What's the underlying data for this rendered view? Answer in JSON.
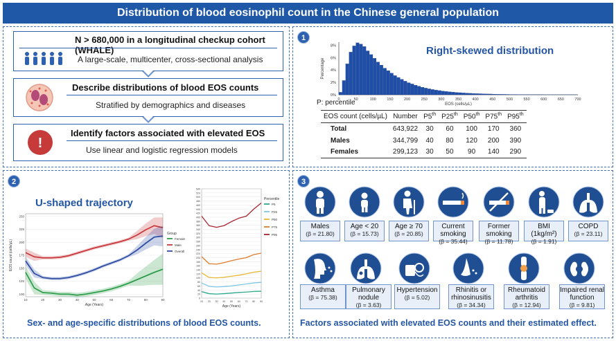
{
  "banner": "Distribution of blood eosinophil count in the Chinese general population",
  "flow": {
    "box1_title": "N > 680,000 in a longitudinal checkup cohort (WHALE)",
    "box1_sub": "A large-scale, multicenter, cross-sectional analysis",
    "box2_title": "Describe distributions of blood EOS counts",
    "box2_sub": "Stratified by demographics and diseases",
    "box3_title": "Identify factors associated with elevated EOS",
    "box3_sub": "Use linear and logistic regression models",
    "alert_symbol": "!"
  },
  "panel1": {
    "number": "1",
    "title": "Right-skewed distribution",
    "percentile_note": "P: percentile",
    "table": {
      "headers": [
        "EOS count (cells/µL)",
        "Number",
        "P5",
        "P25",
        "P50",
        "P75",
        "P95"
      ],
      "header_sup": "th",
      "rows": [
        {
          "label": "Total",
          "number": "643,922",
          "p5": "30",
          "p25": "60",
          "p50": "100",
          "p75": "170",
          "p95": "360"
        },
        {
          "label": "Males",
          "number": "344,799",
          "p5": "40",
          "p25": "80",
          "p50": "120",
          "p75": "200",
          "p95": "390"
        },
        {
          "label": "Females",
          "number": "299,123",
          "p5": "30",
          "p25": "50",
          "p50": "90",
          "p75": "140",
          "p95": "290"
        }
      ]
    }
  },
  "panel2": {
    "number": "2",
    "title": "U-shaped trajectory",
    "caption": "Sex- and age-specific distributions of blood EOS counts."
  },
  "panel3": {
    "number": "3",
    "caption": "Factors associated with elevated EOS counts and their estimated effect.",
    "row1": [
      {
        "label": "Males",
        "beta": "(β = 21.80)",
        "icon": "male-person-icon"
      },
      {
        "label": "Age < 20",
        "beta": "(β = 15.73)",
        "icon": "child-icon"
      },
      {
        "label": "Age ≥ 70",
        "beta": "(β = 20.85)",
        "icon": "elderly-icon"
      },
      {
        "label": "Current smoking",
        "beta": "(β = 35.44)",
        "icon": "cigarette-icon"
      },
      {
        "label": "Former smoking",
        "beta": "(β = 11.78)",
        "icon": "no-smoking-icon"
      },
      {
        "label": "BMI (1kg/m²)",
        "beta": "(β = 1.91)",
        "icon": "body-weight-icon"
      },
      {
        "label": "COPD",
        "beta": "(β = 23.11)",
        "icon": "lungs-icon"
      }
    ],
    "row2": [
      {
        "label": "Asthma",
        "beta": "(β = 75.38)",
        "icon": "coughing-head-icon"
      },
      {
        "label": "Pulmonary nodule",
        "beta": "(β = 3.63)",
        "icon": "lung-nodule-icon"
      },
      {
        "label": "Hypertension",
        "beta": "(β = 5.02)",
        "icon": "blood-pressure-icon"
      },
      {
        "label": "Rhinitis or rhinosinusitis",
        "beta": "(β = 34.34)",
        "icon": "nose-icon"
      },
      {
        "label": "Rheumatoid arthritis",
        "beta": "(β = 12.94)",
        "icon": "knee-joint-icon"
      },
      {
        "label": "Impaired renal function",
        "beta": "(β = 9.81)",
        "icon": "kidneys-icon"
      }
    ]
  },
  "chart_data": [
    {
      "type": "bar",
      "x_ticks": [
        0,
        50,
        100,
        150,
        200,
        250,
        300,
        350,
        400,
        450,
        500,
        550,
        600,
        650,
        700
      ],
      "xlabel": "EOS (cells/µL)",
      "ylabel": "Percentage",
      "y_ticks": [
        "0%",
        "2%",
        "4%",
        "6%",
        "8%"
      ],
      "ylim": [
        0,
        8.5
      ],
      "bin_width": 10,
      "bin_start": 0,
      "values": [
        0.4,
        2.3,
        5.0,
        6.9,
        7.9,
        8.4,
        8.2,
        7.8,
        7.1,
        6.5,
        5.9,
        5.3,
        4.8,
        4.3,
        3.9,
        3.5,
        3.1,
        2.8,
        2.5,
        2.2,
        1.95,
        1.75,
        1.55,
        1.38,
        1.22,
        1.08,
        0.96,
        0.85,
        0.76,
        0.68,
        0.6,
        0.54,
        0.48,
        0.43,
        0.38,
        0.34,
        0.3,
        0.27,
        0.24,
        0.21,
        0.19,
        0.17,
        0.15,
        0.13,
        0.12,
        0.1,
        0.09,
        0.08,
        0.07,
        0.06,
        0.05,
        0.05,
        0.04,
        0.04,
        0.03,
        0.03,
        0.02,
        0.02,
        0.02,
        0.02,
        0.01,
        0.01,
        0.01,
        0.01,
        0.01,
        0.01,
        0.01,
        0.01,
        0.01,
        0.01
      ]
    },
    {
      "type": "line",
      "xlabel": "Age (Years)",
      "ylabel": "EOS count (cells/µL)",
      "legend_title": "Group",
      "x_ticks": [
        10,
        20,
        30,
        40,
        50,
        60,
        70,
        80,
        90
      ],
      "y_ticks": [
        100,
        125,
        150,
        175,
        200,
        225,
        250
      ],
      "ylim": [
        95,
        255
      ],
      "x": [
        10,
        15,
        20,
        25,
        30,
        35,
        40,
        45,
        50,
        55,
        60,
        65,
        70,
        75,
        80,
        85,
        90
      ],
      "series": [
        {
          "name": "Female",
          "color": "#2e9e4a",
          "values": [
            142,
            112,
            103,
            102,
            100,
            100,
            98,
            100,
            103,
            106,
            110,
            115,
            121,
            128,
            135,
            142,
            148
          ]
        },
        {
          "name": "Male",
          "color": "#c8383d",
          "values": [
            180,
            172,
            170,
            170,
            171,
            174,
            179,
            184,
            189,
            193,
            197,
            201,
            206,
            214,
            224,
            232,
            228
          ]
        },
        {
          "name": "Overall",
          "color": "#2f4ea3",
          "values": [
            164,
            140,
            132,
            130,
            130,
            132,
            136,
            141,
            147,
            154,
            160,
            166,
            174,
            185,
            198,
            210,
            212
          ]
        }
      ]
    },
    {
      "type": "line",
      "xlabel": "Age (Years)",
      "legend_title": "Percentile",
      "x_ticks": [
        10,
        20,
        30,
        40,
        50,
        60,
        70,
        80,
        90
      ],
      "y_ticks": [
        0,
        20,
        40,
        60,
        80,
        100,
        120,
        140,
        160,
        180,
        200,
        220,
        240,
        260,
        280,
        300,
        320,
        340,
        360,
        380,
        400,
        420,
        440,
        460,
        480,
        500,
        520,
        540
      ],
      "ylim": [
        0,
        540
      ],
      "x": [
        10,
        20,
        30,
        40,
        50,
        60,
        70,
        80,
        90
      ],
      "series": [
        {
          "name": "P5",
          "color": "#2aa98a",
          "values": [
            32,
            22,
            20,
            22,
            25,
            28,
            30,
            33,
            34
          ]
        },
        {
          "name": "P25",
          "color": "#7ec7e6",
          "values": [
            75,
            58,
            55,
            57,
            60,
            65,
            70,
            75,
            78
          ]
        },
        {
          "name": "P50",
          "color": "#e8b632",
          "values": [
            125,
            102,
            100,
            103,
            108,
            113,
            120,
            128,
            133
          ]
        },
        {
          "name": "P75",
          "color": "#e07b2b",
          "values": [
            205,
            170,
            168,
            175,
            185,
            193,
            200,
            215,
            222
          ]
        },
        {
          "name": "P95",
          "color": "#a6262e",
          "values": [
            405,
            358,
            350,
            358,
            378,
            395,
            405,
            440,
            470
          ]
        }
      ]
    }
  ]
}
